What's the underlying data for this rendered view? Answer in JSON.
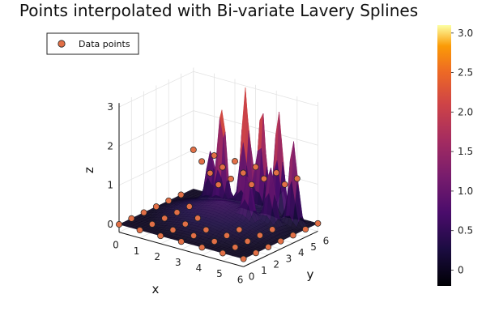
{
  "chart_data": {
    "type": "surface3d",
    "title": "Points interpolated with Bi-variate Lavery Splines",
    "xlabel": "x",
    "ylabel": "y",
    "zlabel": "z",
    "xlim": [
      0,
      6
    ],
    "ylim": [
      0,
      6
    ],
    "zlim": [
      -0.2,
      3.1
    ],
    "x_ticks": [
      "0",
      "1",
      "2",
      "3",
      "4",
      "5",
      "6"
    ],
    "y_ticks": [
      "0",
      "1",
      "2",
      "3",
      "4",
      "5",
      "6"
    ],
    "z_ticks": [
      "0",
      "1",
      "2",
      "3"
    ],
    "grid": true,
    "legend": {
      "position": "top-left",
      "entries": [
        "Data points"
      ]
    },
    "colorbar": {
      "colormap": "inferno",
      "range": [
        -0.2,
        3.1
      ],
      "tick_values": [
        0.0,
        0.5,
        1.0,
        1.5,
        2.0,
        2.5,
        3.0
      ],
      "tick_labels": [
        "0",
        "0.5",
        "1.0",
        "1.5",
        "2.0",
        "2.5",
        "3.0"
      ]
    },
    "series": [
      {
        "name": "Data points",
        "type": "scatter3d",
        "color": "#e26f46",
        "points": [
          {
            "x": 0,
            "y": 0,
            "z": 0
          },
          {
            "x": 1,
            "y": 0,
            "z": 0
          },
          {
            "x": 2,
            "y": 0,
            "z": 0
          },
          {
            "x": 3,
            "y": 0,
            "z": 0
          },
          {
            "x": 4,
            "y": 0,
            "z": 0
          },
          {
            "x": 5,
            "y": 0,
            "z": 0
          },
          {
            "x": 6,
            "y": 0,
            "z": 0
          },
          {
            "x": 0,
            "y": 1,
            "z": 0
          },
          {
            "x": 1,
            "y": 1,
            "z": 0
          },
          {
            "x": 2,
            "y": 1,
            "z": 0
          },
          {
            "x": 3,
            "y": 1,
            "z": 0
          },
          {
            "x": 4,
            "y": 1,
            "z": 0
          },
          {
            "x": 5,
            "y": 1,
            "z": 0
          },
          {
            "x": 6,
            "y": 1,
            "z": 0
          },
          {
            "x": 0,
            "y": 2,
            "z": 0
          },
          {
            "x": 1,
            "y": 2,
            "z": 0
          },
          {
            "x": 2,
            "y": 2,
            "z": 0
          },
          {
            "x": 3,
            "y": 2,
            "z": 0
          },
          {
            "x": 4,
            "y": 2,
            "z": 0
          },
          {
            "x": 5,
            "y": 2,
            "z": 0
          },
          {
            "x": 6,
            "y": 2,
            "z": 0
          },
          {
            "x": 0,
            "y": 3,
            "z": 0
          },
          {
            "x": 1,
            "y": 3,
            "z": 0
          },
          {
            "x": 2,
            "y": 3,
            "z": 0
          },
          {
            "x": 3,
            "y": 3,
            "z": 1
          },
          {
            "x": 4,
            "y": 3,
            "z": 0
          },
          {
            "x": 5,
            "y": 3,
            "z": 0
          },
          {
            "x": 6,
            "y": 3,
            "z": 0
          },
          {
            "x": 0,
            "y": 4,
            "z": 0
          },
          {
            "x": 1,
            "y": 4,
            "z": 0
          },
          {
            "x": 2,
            "y": 4,
            "z": 1
          },
          {
            "x": 3,
            "y": 4,
            "z": 1
          },
          {
            "x": 4,
            "y": 4,
            "z": 1
          },
          {
            "x": 5,
            "y": 4,
            "z": 0
          },
          {
            "x": 6,
            "y": 4,
            "z": 0
          },
          {
            "x": 0,
            "y": 5,
            "z": 0
          },
          {
            "x": 1,
            "y": 5,
            "z": 1
          },
          {
            "x": 2,
            "y": 5,
            "z": 1
          },
          {
            "x": 3,
            "y": 5,
            "z": 1
          },
          {
            "x": 4,
            "y": 5,
            "z": 1
          },
          {
            "x": 5,
            "y": 5,
            "z": 1
          },
          {
            "x": 6,
            "y": 5,
            "z": 0
          },
          {
            "x": 0,
            "y": 6,
            "z": 1
          },
          {
            "x": 1,
            "y": 6,
            "z": 1
          },
          {
            "x": 2,
            "y": 6,
            "z": 1
          },
          {
            "x": 3,
            "y": 6,
            "z": 1
          },
          {
            "x": 4,
            "y": 6,
            "z": 1
          },
          {
            "x": 5,
            "y": 6,
            "z": 1
          },
          {
            "x": 6,
            "y": 6,
            "z": 0
          }
        ]
      },
      {
        "name": "surface",
        "type": "surface",
        "peaks": [
          {
            "x": 3.0,
            "y": 5.2,
            "z": 3.0
          },
          {
            "x": 3.6,
            "y": 5.5,
            "z": 2.6
          },
          {
            "x": 4.3,
            "y": 5.7,
            "z": 2.7
          },
          {
            "x": 5.3,
            "y": 5.2,
            "z": 2.2
          },
          {
            "x": 2.2,
            "y": 4.6,
            "z": 2.5
          },
          {
            "x": 4.8,
            "y": 4.2,
            "z": 1.4
          },
          {
            "x": 4.2,
            "y": 3.4,
            "z": 1.1
          },
          {
            "x": 1.5,
            "y": 4.9,
            "z": 1.3
          }
        ]
      }
    ]
  }
}
